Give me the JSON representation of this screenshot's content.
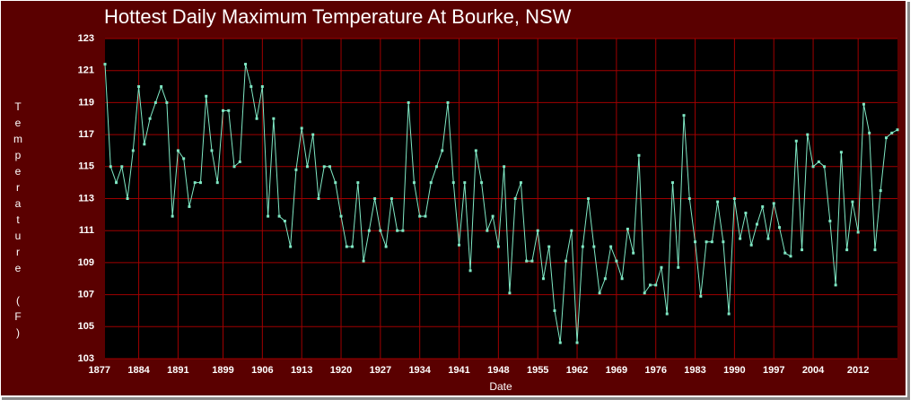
{
  "chart_data": {
    "type": "line",
    "title": "Hottest Daily Maximum Temperature At Bourke, NSW",
    "x_label": "Date",
    "y_label": "Temperature (F)",
    "x": [
      1878,
      1879,
      1880,
      1881,
      1882,
      1883,
      1884,
      1885,
      1886,
      1887,
      1888,
      1889,
      1890,
      1891,
      1892,
      1893,
      1894,
      1895,
      1896,
      1897,
      1898,
      1899,
      1900,
      1901,
      1902,
      1903,
      1904,
      1905,
      1906,
      1907,
      1908,
      1909,
      1910,
      1911,
      1912,
      1913,
      1914,
      1915,
      1916,
      1917,
      1918,
      1919,
      1920,
      1921,
      1922,
      1923,
      1924,
      1925,
      1926,
      1927,
      1928,
      1929,
      1930,
      1931,
      1932,
      1933,
      1934,
      1935,
      1936,
      1937,
      1938,
      1939,
      1940,
      1941,
      1942,
      1943,
      1944,
      1945,
      1946,
      1947,
      1948,
      1949,
      1950,
      1951,
      1952,
      1953,
      1954,
      1955,
      1956,
      1957,
      1958,
      1959,
      1960,
      1961,
      1962,
      1963,
      1964,
      1965,
      1966,
      1967,
      1968,
      1969,
      1970,
      1971,
      1972,
      1973,
      1974,
      1975,
      1976,
      1977,
      1978,
      1979,
      1980,
      1981,
      1982,
      1983,
      1984,
      1985,
      1986,
      1987,
      1988,
      1989,
      1990,
      1991,
      1992,
      1993,
      1994,
      1995,
      1996,
      1997,
      1998,
      1999,
      2000,
      2001,
      2002,
      2003,
      2004,
      2005,
      2006,
      2007,
      2008,
      2009,
      2010,
      2011,
      2012,
      2013,
      2014,
      2015,
      2016,
      2017,
      2018,
      2019
    ],
    "series": [
      {
        "name": "Temperature",
        "color": "#7fe8c4",
        "values": [
          121.4,
          115,
          114,
          115,
          113,
          116,
          120,
          116.4,
          118,
          119,
          120,
          119,
          111.9,
          116,
          115.5,
          112.5,
          114,
          114,
          119.4,
          116,
          114,
          118.5,
          118.5,
          115,
          115.3,
          121.4,
          120,
          118,
          120,
          111.9,
          118,
          111.9,
          111.6,
          110,
          114.8,
          117.4,
          115,
          117,
          113,
          115,
          115,
          114,
          111.9,
          110,
          110,
          114,
          109.1,
          111,
          113,
          111,
          110,
          113,
          111,
          111,
          119,
          114,
          111.9,
          111.9,
          114,
          115,
          116,
          119,
          114,
          110.1,
          114,
          108.5,
          116,
          114,
          111,
          111.9,
          110,
          115,
          107.1,
          113,
          114,
          109.1,
          109.1,
          111,
          108,
          110,
          106,
          104,
          109.1,
          111,
          104,
          110,
          113,
          110,
          107.1,
          108,
          110,
          109.1,
          108,
          111.1,
          109.6,
          115.7,
          107.1,
          107.6,
          107.6,
          108.7,
          105.8,
          114,
          108.7,
          118.2,
          113,
          110.3,
          106.9,
          110.3,
          110.3,
          112.8,
          110.3,
          105.8,
          113,
          110.5,
          112.1,
          110.1,
          111.4,
          112.5,
          110.5,
          112.7,
          111.2,
          109.6,
          109.4,
          116.6,
          109.8,
          117,
          115,
          115.3,
          115,
          111.6,
          107.6,
          115.9,
          109.8,
          112.8,
          110.9,
          118.9,
          117.1,
          109.8,
          113.5,
          116.8,
          117.1,
          117.3
        ]
      }
    ],
    "xlim": [
      1878,
      2019
    ],
    "xticks": [
      1877,
      1884,
      1891,
      1899,
      1906,
      1913,
      1920,
      1927,
      1934,
      1941,
      1948,
      1955,
      1962,
      1969,
      1976,
      1983,
      1990,
      1997,
      2004,
      2012
    ],
    "ylim": [
      103,
      123
    ],
    "yticks": [
      103,
      105,
      107,
      109,
      111,
      113,
      115,
      117,
      119,
      121,
      123
    ],
    "grid": true
  }
}
